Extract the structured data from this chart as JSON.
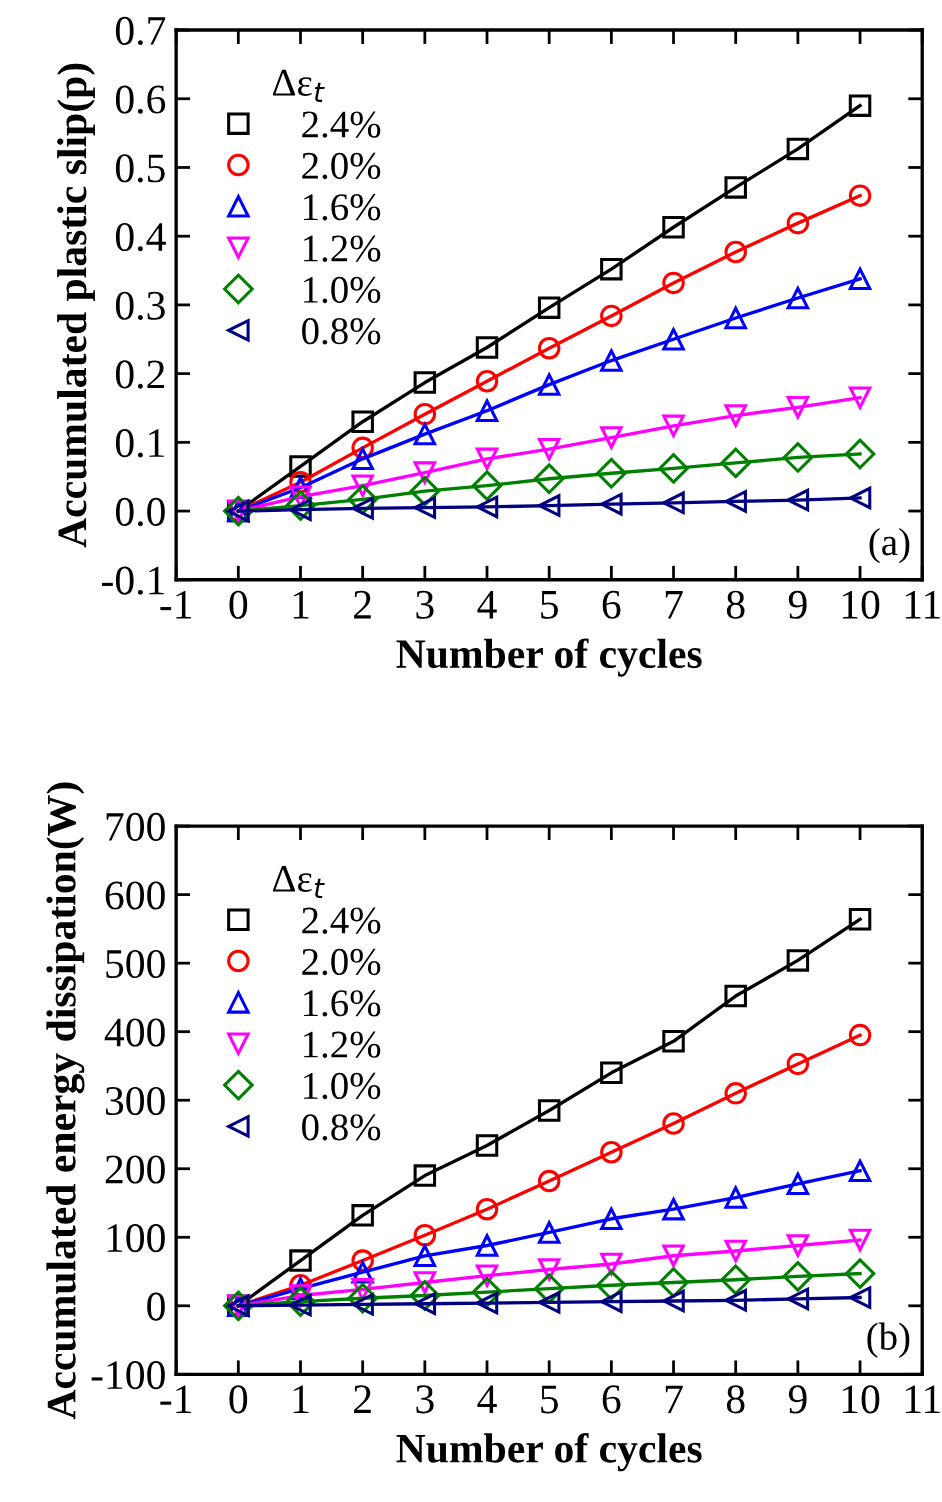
{
  "chart_data": [
    {
      "type": "line",
      "xlabel": "Number of cycles",
      "ylabel": "Accumulated plastic slip(p)",
      "legend_title": "Δε$_{t}$",
      "legend": "top left",
      "grid": false,
      "x": [
        0,
        1,
        2,
        3,
        4,
        5,
        6,
        7,
        8,
        9,
        10
      ],
      "xlim": [
        -1,
        11
      ],
      "xticks": [
        -1,
        0,
        1,
        2,
        3,
        4,
        5,
        6,
        7,
        8,
        9,
        10,
        11
      ],
      "ylim": [
        -0.1,
        0.7
      ],
      "yticks": [
        -0.1,
        {
          "value": 0.0,
          "label": "0.0"
        },
        0.1,
        0.2,
        0.3,
        0.4,
        0.5,
        0.6,
        0.7
      ],
      "annotations": [
        "(a)"
      ],
      "series": [
        {
          "name": "2.4%",
          "color": "#000000",
          "marker": "square",
          "values": [
            0,
            0.065,
            0.13,
            0.187,
            0.238,
            0.296,
            0.352,
            0.413,
            0.471,
            0.527,
            0.59
          ]
        },
        {
          "name": "2.0%",
          "color": "#ff0000",
          "marker": "circle",
          "values": [
            0,
            0.042,
            0.092,
            0.141,
            0.189,
            0.237,
            0.284,
            0.332,
            0.377,
            0.419,
            0.459
          ]
        },
        {
          "name": "1.6%",
          "color": "#0000ff",
          "marker": "triangle",
          "values": [
            0,
            0.034,
            0.076,
            0.112,
            0.146,
            0.184,
            0.219,
            0.25,
            0.281,
            0.31,
            0.338
          ]
        },
        {
          "name": "1.2%",
          "color": "#ff00ff",
          "marker": "triangle_down",
          "values": [
            0,
            0.021,
            0.037,
            0.056,
            0.076,
            0.09,
            0.107,
            0.124,
            0.139,
            0.151,
            0.165
          ]
        },
        {
          "name": "1.0%",
          "color": "#008000",
          "marker": "diamond",
          "values": [
            0,
            0.008,
            0.017,
            0.029,
            0.037,
            0.047,
            0.055,
            0.062,
            0.07,
            0.078,
            0.083
          ]
        },
        {
          "name": "0.8%",
          "color": "#000080",
          "marker": "triangle_left",
          "values": [
            0,
            0.002,
            0.004,
            0.005,
            0.006,
            0.008,
            0.01,
            0.012,
            0.014,
            0.016,
            0.019
          ]
        }
      ]
    },
    {
      "type": "line",
      "xlabel": "Number of cycles",
      "ylabel": "Accumulated energy dissipation(W)",
      "legend_title": "Δε$_{t}$",
      "legend": "top left",
      "grid": false,
      "x": [
        0,
        1,
        2,
        3,
        4,
        5,
        6,
        7,
        8,
        9,
        10
      ],
      "xlim": [
        -1,
        11
      ],
      "xticks": [
        -1,
        0,
        1,
        2,
        3,
        4,
        5,
        6,
        7,
        8,
        9,
        10,
        11
      ],
      "ylim": [
        -100,
        700
      ],
      "yticks": [
        -100,
        0,
        100,
        200,
        300,
        400,
        500,
        600,
        700
      ],
      "annotations": [
        "(b)"
      ],
      "series": [
        {
          "name": "2.4%",
          "color": "#000000",
          "marker": "square",
          "values": [
            0,
            66,
            132,
            190,
            234,
            285,
            340,
            386,
            452,
            504,
            564
          ]
        },
        {
          "name": "2.0%",
          "color": "#ff0000",
          "marker": "circle",
          "values": [
            0,
            30,
            66,
            103,
            141,
            182,
            224,
            266,
            310,
            353,
            395
          ]
        },
        {
          "name": "1.6%",
          "color": "#0000ff",
          "marker": "triangle",
          "values": [
            0,
            25,
            49,
            73,
            88,
            107,
            127,
            141,
            158,
            178,
            197
          ]
        },
        {
          "name": "1.2%",
          "color": "#ff00ff",
          "marker": "triangle_down",
          "values": [
            0,
            15,
            24,
            34,
            44,
            53,
            61,
            73,
            80,
            88,
            96
          ]
        },
        {
          "name": "1.0%",
          "color": "#008000",
          "marker": "diamond",
          "values": [
            0,
            6,
            11,
            15,
            20,
            25,
            30,
            34,
            38,
            43,
            47
          ]
        },
        {
          "name": "0.8%",
          "color": "#000080",
          "marker": "triangle_left",
          "values": [
            0,
            1,
            2,
            3,
            4,
            5,
            6,
            7,
            8,
            10,
            12
          ]
        }
      ]
    }
  ]
}
